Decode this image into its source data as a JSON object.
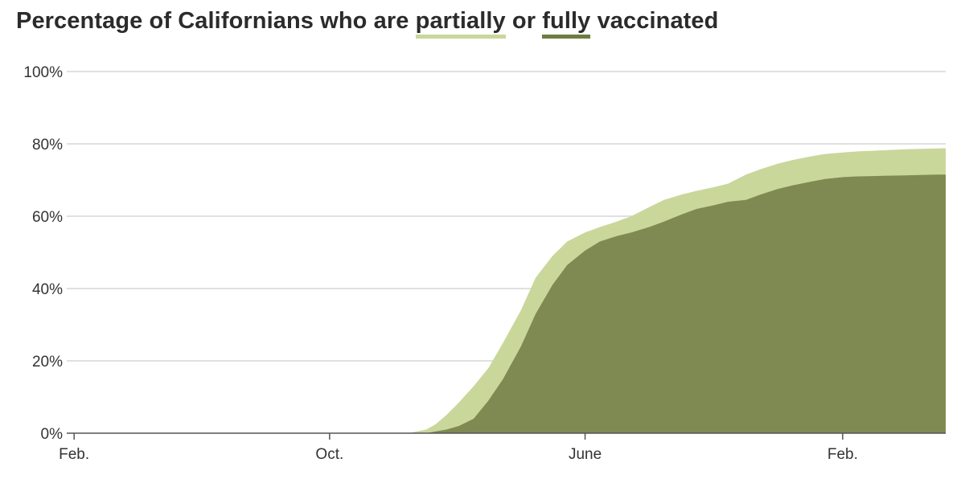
{
  "title": {
    "prefix": "Percentage of Californians who are ",
    "partial_word": "partially",
    "middle": " or ",
    "full_word": "fully",
    "suffix": " vaccinated"
  },
  "chart_data": {
    "type": "area",
    "title": "Percentage of Californians who are partially or fully vaccinated",
    "xlabel": "",
    "ylabel": "",
    "ylim": [
      0,
      100
    ],
    "yticks": [
      0,
      20,
      40,
      60,
      80,
      100
    ],
    "ytick_labels": [
      "0%",
      "20%",
      "40%",
      "60%",
      "80%",
      "100%"
    ],
    "xlim": [
      "2020-01-25",
      "2022-05-10"
    ],
    "xticks": [
      "2020-02-01",
      "2020-10-01",
      "2021-06-01",
      "2022-02-01"
    ],
    "xtick_labels": [
      "Feb.",
      "Oct.",
      "June",
      "Feb."
    ],
    "grid": true,
    "colors": {
      "partial": "#c9d79b",
      "full": "#7f8a53",
      "grid": "#d6d6d6",
      "axis": "#555555"
    },
    "series": [
      {
        "name": "partially",
        "x": [
          "2020-12-15",
          "2020-12-20",
          "2021-01-01",
          "2021-01-10",
          "2021-01-20",
          "2021-02-01",
          "2021-02-15",
          "2021-03-01",
          "2021-03-15",
          "2021-04-01",
          "2021-04-15",
          "2021-05-01",
          "2021-05-15",
          "2021-06-01",
          "2021-06-15",
          "2021-07-01",
          "2021-07-15",
          "2021-08-01",
          "2021-08-15",
          "2021-09-01",
          "2021-09-15",
          "2021-10-01",
          "2021-10-15",
          "2021-11-01",
          "2021-11-15",
          "2021-12-01",
          "2021-12-15",
          "2022-01-01",
          "2022-01-15",
          "2022-02-01",
          "2022-02-15",
          "2022-03-01",
          "2022-03-15",
          "2022-04-01",
          "2022-04-15",
          "2022-05-01",
          "2022-05-10"
        ],
        "values": [
          0,
          0.3,
          1,
          2.5,
          5,
          8.5,
          13,
          18,
          25,
          34,
          43,
          49,
          53,
          55.5,
          57,
          58.5,
          60,
          62.5,
          64.5,
          66,
          67,
          68,
          69,
          71.5,
          73,
          74.5,
          75.5,
          76.5,
          77.2,
          77.6,
          77.9,
          78.1,
          78.3,
          78.5,
          78.6,
          78.7,
          78.8
        ]
      },
      {
        "name": "fully",
        "x": [
          "2021-01-01",
          "2021-01-10",
          "2021-01-20",
          "2021-02-01",
          "2021-02-15",
          "2021-03-01",
          "2021-03-15",
          "2021-04-01",
          "2021-04-15",
          "2021-05-01",
          "2021-05-15",
          "2021-06-01",
          "2021-06-15",
          "2021-07-01",
          "2021-07-15",
          "2021-08-01",
          "2021-08-15",
          "2021-09-01",
          "2021-09-15",
          "2021-10-01",
          "2021-10-15",
          "2021-11-01",
          "2021-11-15",
          "2021-12-01",
          "2021-12-15",
          "2022-01-01",
          "2022-01-15",
          "2022-02-01",
          "2022-02-15",
          "2022-03-01",
          "2022-03-15",
          "2022-04-01",
          "2022-04-15",
          "2022-05-01",
          "2022-05-10"
        ],
        "values": [
          0,
          0.5,
          1,
          2,
          4,
          9,
          15,
          24,
          33,
          41,
          46.5,
          50.5,
          53,
          54.5,
          55.5,
          57,
          58.5,
          60.5,
          62,
          63,
          64,
          64.5,
          66,
          67.5,
          68.5,
          69.5,
          70.3,
          70.8,
          71,
          71.1,
          71.2,
          71.3,
          71.4,
          71.5,
          71.5
        ]
      }
    ]
  }
}
